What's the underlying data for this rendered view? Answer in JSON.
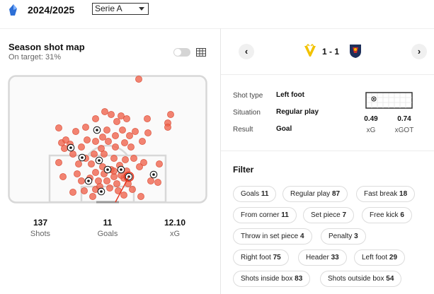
{
  "header": {
    "season": "2024/2025",
    "league_select": "Serie A"
  },
  "shotmap": {
    "title": "Season shot map",
    "subtitle": "On target: 31%"
  },
  "stats": [
    {
      "value": "137",
      "label": "Shots"
    },
    {
      "value": "11",
      "label": "Goals"
    },
    {
      "value": "12.10",
      "label": "xG"
    }
  ],
  "match": {
    "score": "1 - 1",
    "prev": "‹",
    "next": "›"
  },
  "shot_detail": {
    "shot_type_label": "Shot type",
    "shot_type_value": "Left foot",
    "situation_label": "Situation",
    "situation_value": "Regular play",
    "result_label": "Result",
    "result_value": "Goal",
    "xg_value": "0.49",
    "xg_label": "xG",
    "xgot_value": "0.74",
    "xgot_label": "xGOT"
  },
  "filter": {
    "title": "Filter",
    "chips": [
      {
        "label": "Goals",
        "count": "11"
      },
      {
        "label": "Regular play",
        "count": "87"
      },
      {
        "label": "Fast break",
        "count": "18"
      },
      {
        "label": "From corner",
        "count": "11"
      },
      {
        "label": "Set piece",
        "count": "7"
      },
      {
        "label": "Free kick",
        "count": "6"
      },
      {
        "label": "Throw in set piece",
        "count": "4"
      },
      {
        "label": "Penalty",
        "count": "3"
      },
      {
        "label": "Right foot",
        "count": "75"
      },
      {
        "label": "Header",
        "count": "33"
      },
      {
        "label": "Left foot",
        "count": "29"
      },
      {
        "label": "Shots inside box",
        "count": "83"
      },
      {
        "label": "Shots outside box",
        "count": "54"
      }
    ]
  },
  "colors": {
    "shot": "#f0624a",
    "accent": "#e8331c"
  }
}
